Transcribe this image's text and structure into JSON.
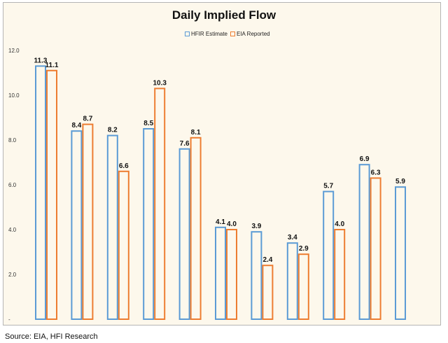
{
  "chart_data": {
    "type": "bar",
    "title": "Daily Implied Flow",
    "xlabel": "",
    "ylabel": "",
    "ylim": [
      0,
      12
    ],
    "y_ticks": [
      "-",
      "2.0",
      "4.0",
      "6.0",
      "8.0",
      "10.0",
      "12.0"
    ],
    "legend_position": "top-center",
    "grid": false,
    "series": [
      {
        "name": "HFIR Estimate",
        "color": "#5b9bd5",
        "values": [
          11.3,
          8.4,
          8.2,
          8.5,
          7.6,
          4.1,
          3.9,
          3.4,
          5.7,
          6.9,
          5.9
        ],
        "labels": [
          "11.3",
          "8.4",
          "8.2",
          "8.5",
          "7.6",
          "4.1",
          "3.9",
          "3.4",
          "5.7",
          "6.9",
          "5.9"
        ]
      },
      {
        "name": "EIA Reported",
        "color": "#ed7d31",
        "values": [
          11.1,
          8.7,
          6.6,
          10.3,
          8.1,
          4.0,
          2.4,
          2.9,
          4.0,
          6.3,
          null
        ],
        "labels": [
          "11.1",
          "8.7",
          "6.6",
          "10.3",
          "8.1",
          "4.0",
          "2.4",
          "2.9",
          "4.0",
          "6.3",
          null
        ]
      }
    ]
  },
  "source": "Source: EIA, HFI Research"
}
